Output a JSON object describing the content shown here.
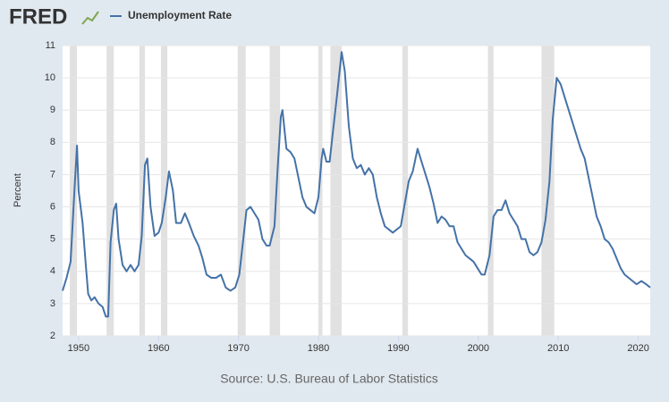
{
  "logo": "FRED",
  "chart_data": {
    "type": "line",
    "ylabel": "Percent",
    "source": "Source: U.S. Bureau of Labor Statistics",
    "xlim": [
      1948,
      2021.5
    ],
    "ylim": [
      2,
      11
    ],
    "xticks": [
      1950,
      1960,
      1970,
      1980,
      1990,
      2000,
      2010,
      2020
    ],
    "yticks": [
      2,
      3,
      4,
      5,
      6,
      7,
      8,
      9,
      10,
      11
    ],
    "grid": true,
    "recession_color": "#e1e1e1",
    "recessions": [
      [
        1948.9,
        1949.8
      ],
      [
        1953.5,
        1954.4
      ],
      [
        1957.6,
        1958.3
      ],
      [
        1960.3,
        1961.1
      ],
      [
        1969.9,
        1970.9
      ],
      [
        1973.9,
        1975.2
      ],
      [
        1980.0,
        1980.5
      ],
      [
        1981.5,
        1982.9
      ],
      [
        1990.5,
        1991.2
      ],
      [
        2001.2,
        2001.9
      ],
      [
        2007.9,
        2009.5
      ]
    ],
    "x": [
      1948.0,
      1948.5,
      1949.0,
      1949.5,
      1949.8,
      1950.0,
      1950.5,
      1950.9,
      1951.2,
      1951.6,
      1952.0,
      1952.5,
      1953.0,
      1953.4,
      1953.7,
      1954.0,
      1954.4,
      1954.7,
      1955.0,
      1955.5,
      1956.0,
      1956.5,
      1957.0,
      1957.5,
      1957.9,
      1958.3,
      1958.6,
      1959.0,
      1959.5,
      1960.0,
      1960.4,
      1960.9,
      1961.3,
      1961.8,
      1962.2,
      1962.8,
      1963.3,
      1963.8,
      1964.4,
      1965.0,
      1965.5,
      1966.0,
      1966.6,
      1967.2,
      1967.8,
      1968.4,
      1969.0,
      1969.6,
      1970.1,
      1970.6,
      1971.0,
      1971.5,
      1972.0,
      1972.5,
      1973.0,
      1973.5,
      1973.9,
      1974.5,
      1974.9,
      1975.3,
      1975.5,
      1976.0,
      1976.5,
      1977.0,
      1977.5,
      1978.0,
      1978.5,
      1979.0,
      1979.5,
      1980.0,
      1980.4,
      1980.6,
      1981.0,
      1981.4,
      1981.8,
      1982.3,
      1982.9,
      1983.3,
      1983.8,
      1984.3,
      1984.8,
      1985.3,
      1985.8,
      1986.3,
      1986.8,
      1987.3,
      1987.8,
      1988.3,
      1988.8,
      1989.3,
      1989.8,
      1990.3,
      1990.8,
      1991.3,
      1991.8,
      1992.4,
      1992.9,
      1993.4,
      1993.9,
      1994.4,
      1994.9,
      1995.4,
      1995.9,
      1996.4,
      1996.9,
      1997.4,
      1997.9,
      1998.4,
      1998.9,
      1999.4,
      1999.9,
      2000.4,
      2000.8,
      2001.4,
      2001.9,
      2002.4,
      2002.9,
      2003.4,
      2003.9,
      2004.4,
      2004.9,
      2005.4,
      2005.9,
      2006.4,
      2006.9,
      2007.4,
      2007.9,
      2008.4,
      2008.9,
      2009.3,
      2009.8,
      2010.3,
      2010.8,
      2011.3,
      2011.8,
      2012.3,
      2012.8,
      2013.3,
      2013.8,
      2014.3,
      2014.8,
      2015.3,
      2015.8,
      2016.3,
      2016.8,
      2017.3,
      2017.8,
      2018.3,
      2018.8,
      2019.3,
      2019.8,
      2020.4,
      2021.0,
      2021.5
    ],
    "series": [
      {
        "name": "Unemployment Rate",
        "color": "#4572a7",
        "values": [
          3.4,
          3.8,
          4.3,
          6.6,
          7.9,
          6.5,
          5.5,
          4.2,
          3.3,
          3.1,
          3.2,
          3.0,
          2.9,
          2.6,
          2.6,
          4.9,
          5.9,
          6.1,
          5.0,
          4.2,
          4.0,
          4.2,
          4.0,
          4.2,
          5.1,
          7.3,
          7.5,
          6.0,
          5.1,
          5.2,
          5.5,
          6.3,
          7.1,
          6.5,
          5.5,
          5.5,
          5.8,
          5.5,
          5.1,
          4.8,
          4.4,
          3.9,
          3.8,
          3.8,
          3.9,
          3.5,
          3.4,
          3.5,
          3.9,
          5.0,
          5.9,
          6.0,
          5.8,
          5.6,
          5.0,
          4.8,
          4.8,
          5.4,
          7.2,
          8.8,
          9.0,
          7.8,
          7.7,
          7.5,
          6.9,
          6.3,
          6.0,
          5.9,
          5.8,
          6.3,
          7.5,
          7.8,
          7.4,
          7.4,
          8.3,
          9.4,
          10.8,
          10.2,
          8.5,
          7.5,
          7.2,
          7.3,
          7.0,
          7.2,
          7.0,
          6.3,
          5.8,
          5.4,
          5.3,
          5.2,
          5.3,
          5.4,
          6.1,
          6.8,
          7.1,
          7.8,
          7.4,
          7.0,
          6.6,
          6.1,
          5.5,
          5.7,
          5.6,
          5.4,
          5.4,
          4.9,
          4.7,
          4.5,
          4.4,
          4.3,
          4.1,
          3.9,
          3.9,
          4.5,
          5.7,
          5.9,
          5.9,
          6.2,
          5.8,
          5.6,
          5.4,
          5.0,
          5.0,
          4.6,
          4.5,
          4.6,
          4.9,
          5.6,
          6.8,
          8.7,
          10.0,
          9.8,
          9.4,
          9.0,
          8.6,
          8.2,
          7.8,
          7.5,
          6.9,
          6.3,
          5.7,
          5.4,
          5.0,
          4.9,
          4.7,
          4.4,
          4.1,
          3.9,
          3.8,
          3.7,
          3.6,
          3.7,
          3.6,
          3.5
        ]
      }
    ]
  }
}
